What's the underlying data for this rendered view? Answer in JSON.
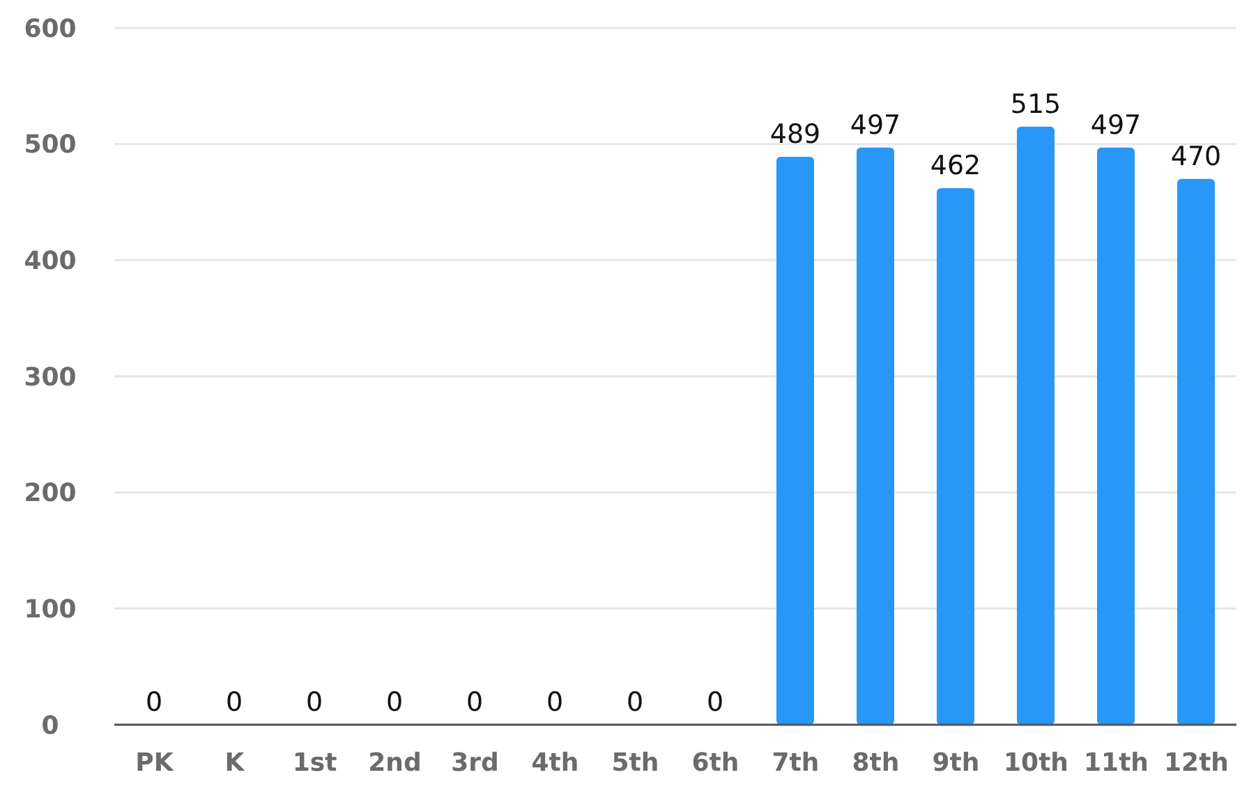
{
  "chart_data": {
    "type": "bar",
    "categories": [
      "PK",
      "K",
      "1st",
      "2nd",
      "3rd",
      "4th",
      "5th",
      "6th",
      "7th",
      "8th",
      "9th",
      "10th",
      "11th",
      "12th"
    ],
    "values": [
      0,
      0,
      0,
      0,
      0,
      0,
      0,
      0,
      489,
      497,
      462,
      515,
      497,
      470
    ],
    "color": "#2997f7",
    "ylim": [
      0,
      600
    ],
    "yticks": [
      0,
      100,
      200,
      300,
      400,
      500,
      600
    ],
    "grid": "y",
    "data_labels": true
  }
}
